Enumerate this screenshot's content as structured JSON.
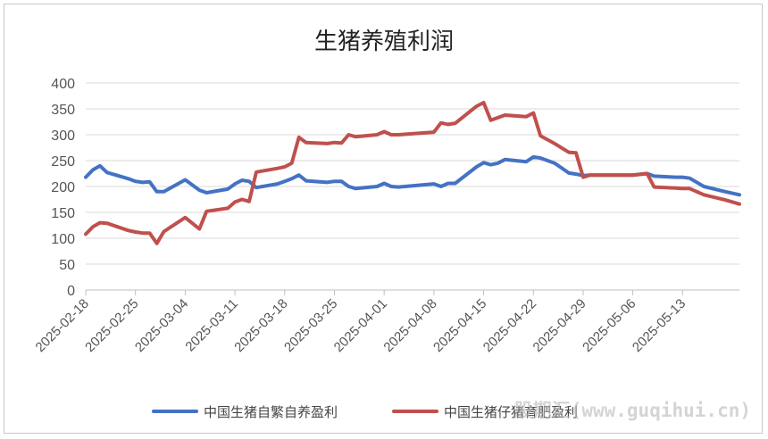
{
  "chart_data": {
    "type": "line",
    "title": "生猪养殖利润",
    "ylim": [
      0,
      400
    ],
    "yticks": [
      0,
      50,
      100,
      150,
      200,
      250,
      300,
      350,
      400
    ],
    "xlim": [
      "2025-02-18",
      "2025-05-21"
    ],
    "xticks": [
      "2025-02-18",
      "2025-02-25",
      "2025-03-04",
      "2025-03-11",
      "2025-03-18",
      "2025-03-25",
      "2025-04-01",
      "2025-04-08",
      "2025-04-15",
      "2025-04-22",
      "2025-04-29",
      "2025-05-06",
      "2025-05-13"
    ],
    "grid": "horizontal",
    "legend_position": "bottom",
    "series": [
      {
        "name": "中国生猪自繁自养盈利",
        "color": "#4472c4",
        "points": [
          [
            "2025-02-18",
            218
          ],
          [
            "2025-02-19",
            232
          ],
          [
            "2025-02-20",
            240
          ],
          [
            "2025-02-21",
            227
          ],
          [
            "2025-02-24",
            215
          ],
          [
            "2025-02-25",
            210
          ],
          [
            "2025-02-26",
            208
          ],
          [
            "2025-02-27",
            209
          ],
          [
            "2025-02-28",
            190
          ],
          [
            "2025-03-01",
            190
          ],
          [
            "2025-03-04",
            213
          ],
          [
            "2025-03-06",
            193
          ],
          [
            "2025-03-07",
            188
          ],
          [
            "2025-03-10",
            195
          ],
          [
            "2025-03-11",
            205
          ],
          [
            "2025-03-12",
            212
          ],
          [
            "2025-03-13",
            210
          ],
          [
            "2025-03-14",
            198
          ],
          [
            "2025-03-17",
            205
          ],
          [
            "2025-03-18",
            210
          ],
          [
            "2025-03-19",
            215
          ],
          [
            "2025-03-20",
            222
          ],
          [
            "2025-03-21",
            211
          ],
          [
            "2025-03-24",
            208
          ],
          [
            "2025-03-25",
            210
          ],
          [
            "2025-03-26",
            210
          ],
          [
            "2025-03-27",
            200
          ],
          [
            "2025-03-28",
            196
          ],
          [
            "2025-03-31",
            200
          ],
          [
            "2025-04-01",
            206
          ],
          [
            "2025-04-02",
            200
          ],
          [
            "2025-04-03",
            199
          ],
          [
            "2025-04-08",
            205
          ],
          [
            "2025-04-09",
            200
          ],
          [
            "2025-04-10",
            206
          ],
          [
            "2025-04-11",
            206
          ],
          [
            "2025-04-14",
            238
          ],
          [
            "2025-04-15",
            246
          ],
          [
            "2025-04-16",
            242
          ],
          [
            "2025-04-17",
            245
          ],
          [
            "2025-04-18",
            252
          ],
          [
            "2025-04-21",
            248
          ],
          [
            "2025-04-22",
            257
          ],
          [
            "2025-04-23",
            255
          ],
          [
            "2025-04-25",
            245
          ],
          [
            "2025-04-27",
            226
          ],
          [
            "2025-04-28",
            224
          ],
          [
            "2025-04-29",
            221
          ],
          [
            "2025-04-30",
            222
          ],
          [
            "2025-05-06",
            222
          ],
          [
            "2025-05-08",
            225
          ],
          [
            "2025-05-09",
            220
          ],
          [
            "2025-05-12",
            218
          ],
          [
            "2025-05-13",
            218
          ],
          [
            "2025-05-14",
            216
          ],
          [
            "2025-05-16",
            200
          ],
          [
            "2025-05-19",
            190
          ],
          [
            "2025-05-21",
            184
          ]
        ]
      },
      {
        "name": "中国生猪仔猪育肥盈利",
        "color": "#c0504d",
        "points": [
          [
            "2025-02-18",
            108
          ],
          [
            "2025-02-19",
            122
          ],
          [
            "2025-02-20",
            130
          ],
          [
            "2025-02-21",
            129
          ],
          [
            "2025-02-24",
            115
          ],
          [
            "2025-02-25",
            112
          ],
          [
            "2025-02-26",
            110
          ],
          [
            "2025-02-27",
            110
          ],
          [
            "2025-02-28",
            90
          ],
          [
            "2025-03-01",
            113
          ],
          [
            "2025-03-04",
            140
          ],
          [
            "2025-03-06",
            118
          ],
          [
            "2025-03-07",
            152
          ],
          [
            "2025-03-10",
            158
          ],
          [
            "2025-03-11",
            170
          ],
          [
            "2025-03-12",
            175
          ],
          [
            "2025-03-13",
            171
          ],
          [
            "2025-03-14",
            228
          ],
          [
            "2025-03-17",
            235
          ],
          [
            "2025-03-18",
            238
          ],
          [
            "2025-03-19",
            245
          ],
          [
            "2025-03-20",
            295
          ],
          [
            "2025-03-21",
            285
          ],
          [
            "2025-03-24",
            283
          ],
          [
            "2025-03-25",
            285
          ],
          [
            "2025-03-26",
            284
          ],
          [
            "2025-03-27",
            300
          ],
          [
            "2025-03-28",
            296
          ],
          [
            "2025-03-31",
            300
          ],
          [
            "2025-04-01",
            306
          ],
          [
            "2025-04-02",
            300
          ],
          [
            "2025-04-03",
            300
          ],
          [
            "2025-04-08",
            305
          ],
          [
            "2025-04-09",
            323
          ],
          [
            "2025-04-10",
            320
          ],
          [
            "2025-04-11",
            322
          ],
          [
            "2025-04-14",
            355
          ],
          [
            "2025-04-15",
            362
          ],
          [
            "2025-04-16",
            328
          ],
          [
            "2025-04-17",
            333
          ],
          [
            "2025-04-18",
            338
          ],
          [
            "2025-04-21",
            335
          ],
          [
            "2025-04-22",
            342
          ],
          [
            "2025-04-23",
            298
          ],
          [
            "2025-04-25",
            283
          ],
          [
            "2025-04-27",
            266
          ],
          [
            "2025-04-28",
            265
          ],
          [
            "2025-04-29",
            218
          ],
          [
            "2025-04-30",
            222
          ],
          [
            "2025-05-06",
            222
          ],
          [
            "2025-05-08",
            225
          ],
          [
            "2025-05-09",
            199
          ],
          [
            "2025-05-12",
            197
          ],
          [
            "2025-05-13",
            196
          ],
          [
            "2025-05-14",
            196
          ],
          [
            "2025-05-16",
            184
          ],
          [
            "2025-05-19",
            174
          ],
          [
            "2025-05-21",
            166
          ]
        ]
      }
    ]
  },
  "watermark": "股期汇(www.guqihui.cn)"
}
